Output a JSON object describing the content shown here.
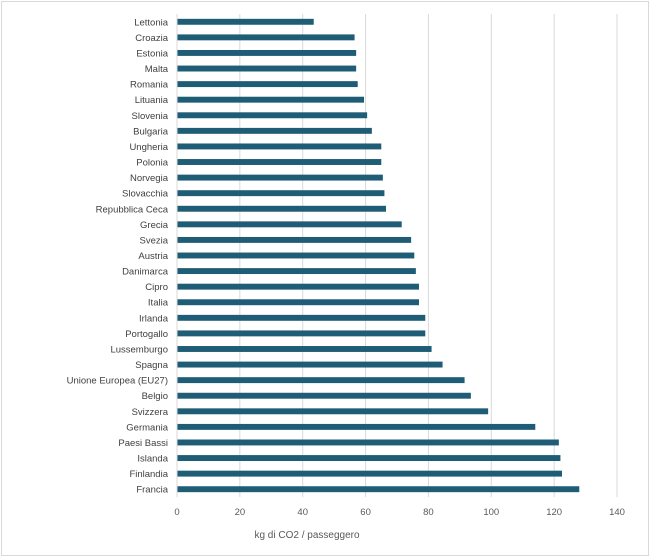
{
  "chart_data": {
    "type": "bar",
    "orientation": "horizontal",
    "title": "",
    "xlabel": "kg di CO2 / passeggero",
    "ylabel": "",
    "xlim": [
      0,
      140
    ],
    "x_ticks": [
      0,
      20,
      40,
      60,
      80,
      100,
      120,
      140
    ],
    "grid": "vertical",
    "legend": "none",
    "bar_color": "#1f5c75",
    "categories": [
      "Lettonia",
      "Croazia",
      "Estonia",
      "Malta",
      "Romania",
      "Lituania",
      "Slovenia",
      "Bulgaria",
      "Ungheria",
      "Polonia",
      "Norvegia",
      "Slovacchia",
      "Repubblica Ceca",
      "Grecia",
      "Svezia",
      "Austria",
      "Danimarca",
      "Cipro",
      "Italia",
      "Irlanda",
      "Portogallo",
      "Lussemburgo",
      "Spagna",
      "Unione Europea (EU27)",
      "Belgio",
      "Svizzera",
      "Germania",
      "Paesi Bassi",
      "Islanda",
      "Finlandia",
      "Francia"
    ],
    "values": [
      43.5,
      56.5,
      57,
      57,
      57.5,
      59.5,
      60.5,
      62,
      65,
      65,
      65.5,
      66,
      66.5,
      71.5,
      74.5,
      75.5,
      76,
      77,
      77,
      79,
      79,
      81,
      84.5,
      91.5,
      93.5,
      99,
      114,
      121.5,
      122,
      122.5,
      128
    ]
  }
}
